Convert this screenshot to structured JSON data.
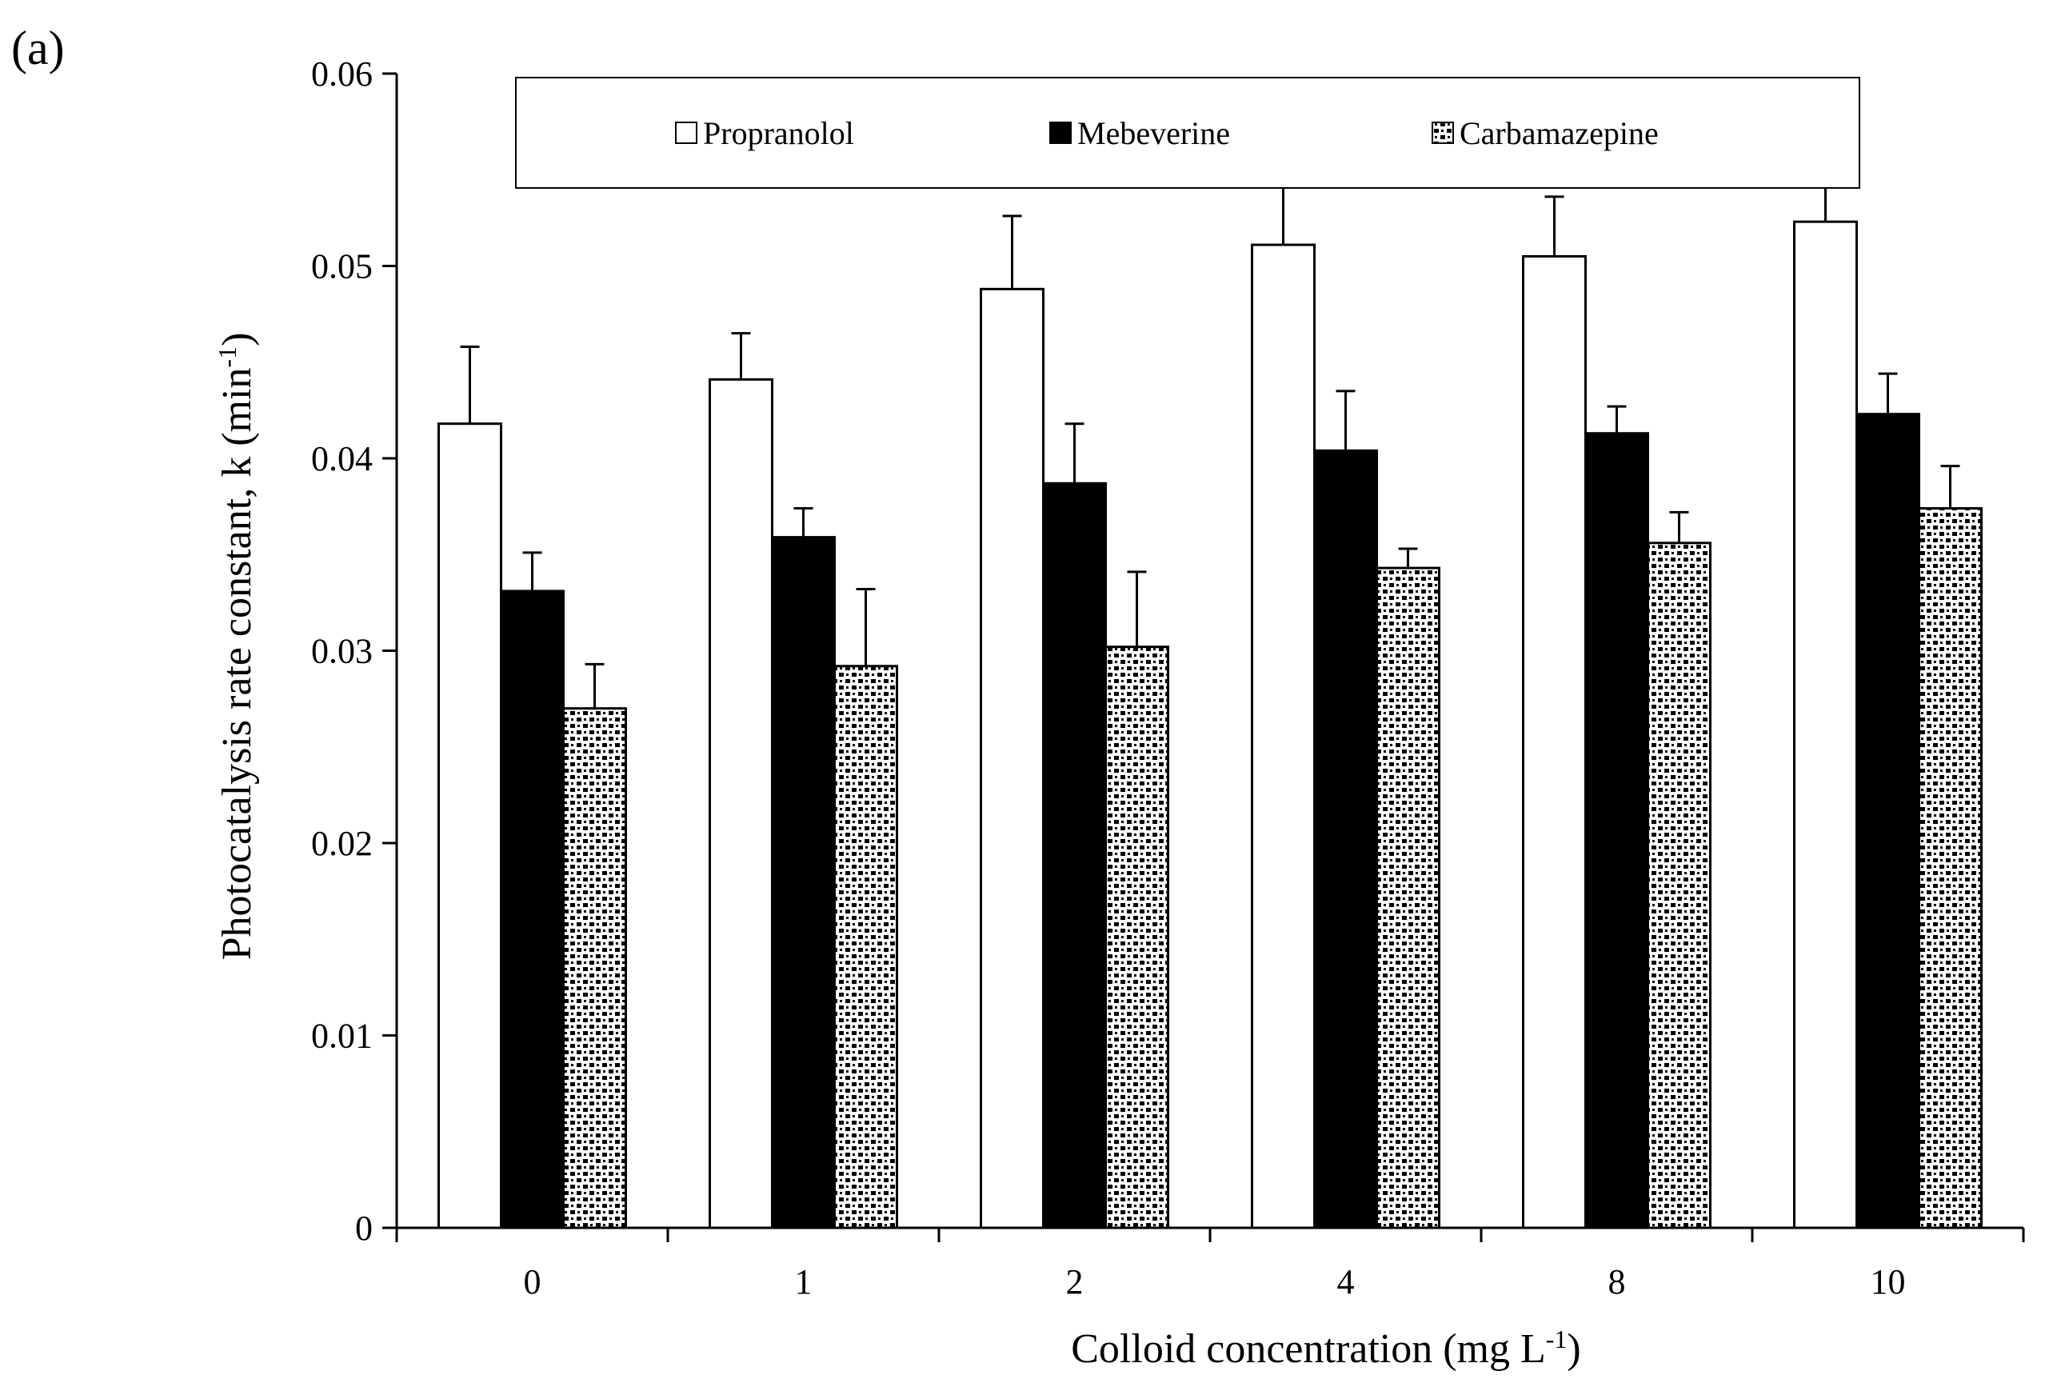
{
  "panel_label": "(a)",
  "chart_data": {
    "type": "bar",
    "title": "",
    "xlabel": "Colloid concentration (mg L",
    "xlabel_sup": "-1",
    "xlabel_suffix": ")",
    "ylabel": "Photocatalysis rate constant, k (min",
    "ylabel_sup": "-1",
    "ylabel_suffix": ")",
    "categories": [
      "0",
      "1",
      "2",
      "4",
      "8",
      "10"
    ],
    "ylim": [
      0,
      0.06
    ],
    "yticks": [
      "0",
      "0.01",
      "0.02",
      "0.03",
      "0.04",
      "0.05",
      "0.06"
    ],
    "ytick_values": [
      0,
      0.01,
      0.02,
      0.03,
      0.04,
      0.05,
      0.06
    ],
    "grid": false,
    "legend_position": "top",
    "series": [
      {
        "name": "Propranolol",
        "style": "white",
        "values": [
          0.0418,
          0.0441,
          0.0488,
          0.0511,
          0.0505,
          0.0523
        ],
        "errors": [
          0.004,
          0.0024,
          0.0038,
          0.003,
          0.0031,
          0.0018
        ]
      },
      {
        "name": "Mebeverine",
        "style": "black",
        "values": [
          0.0331,
          0.0359,
          0.0387,
          0.0404,
          0.0413,
          0.0423
        ],
        "errors": [
          0.002,
          0.0015,
          0.0031,
          0.0031,
          0.0014,
          0.0021
        ]
      },
      {
        "name": "Carbamazepine",
        "style": "dotted",
        "values": [
          0.027,
          0.0292,
          0.0302,
          0.0343,
          0.0356,
          0.0374
        ],
        "errors": [
          0.0023,
          0.004,
          0.0039,
          0.001,
          0.0016,
          0.0022
        ]
      }
    ]
  }
}
